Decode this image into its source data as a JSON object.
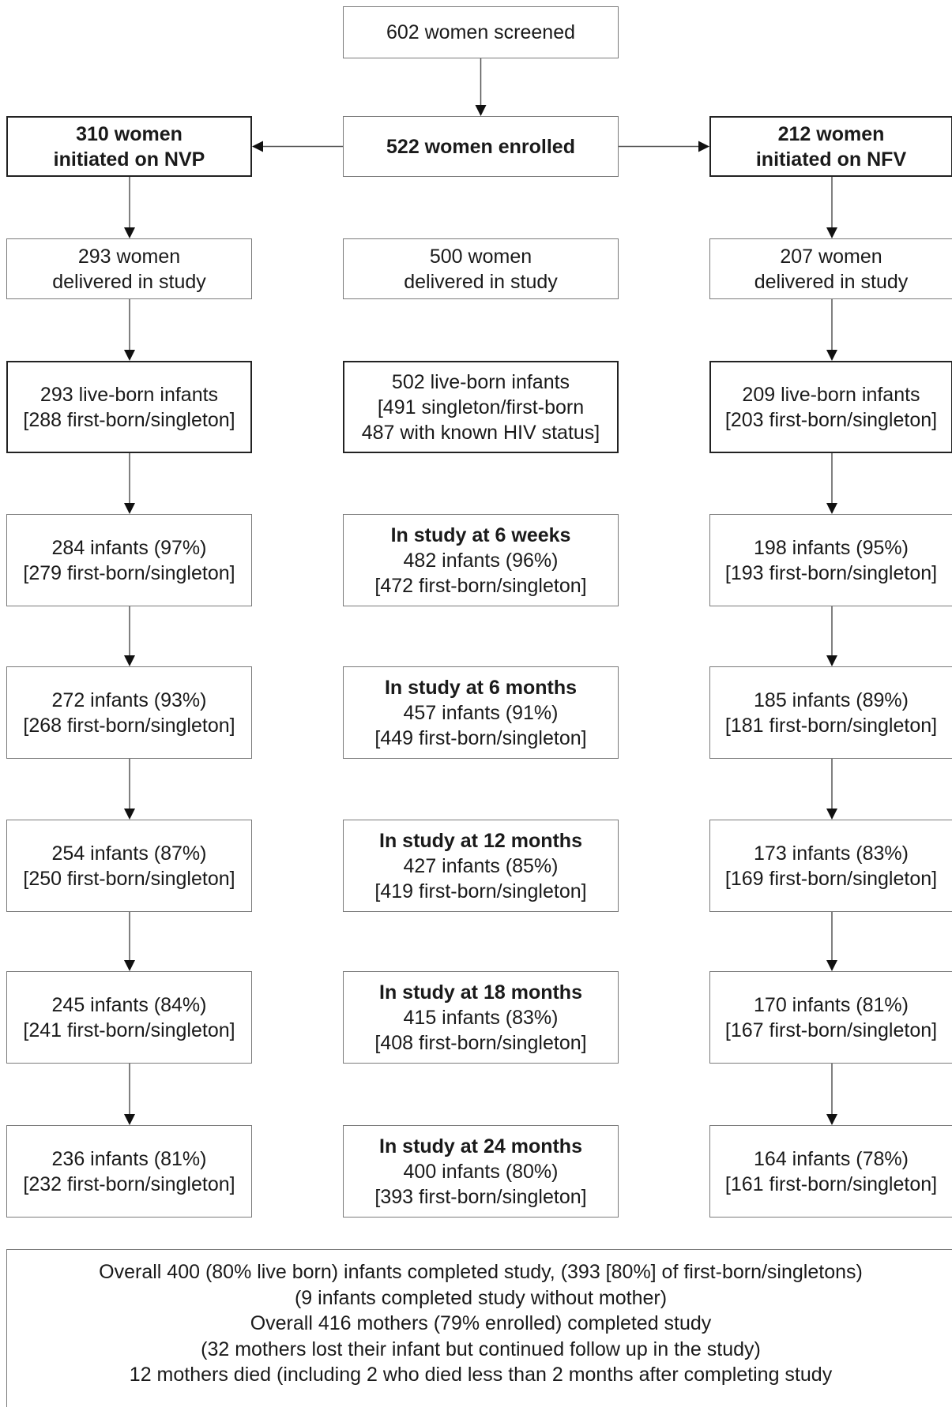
{
  "screened": [
    "602 women screened"
  ],
  "enrolled": [
    "522 women enrolled"
  ],
  "nvp": {
    "initiated": [
      "310 women",
      "initiated on NVP"
    ],
    "delivered": [
      "293 women",
      "delivered in study"
    ],
    "liveborn": [
      "293 live-born infants",
      "[288 first-born/singleton]"
    ],
    "wk6": [
      "284 infants (97%)",
      "[279 first-born/singleton]"
    ],
    "m6": [
      "272  infants (93%)",
      "[268 first-born/singleton]"
    ],
    "m12": [
      "254 infants (87%)",
      "[250 first-born/singleton]"
    ],
    "m18": [
      "245 infants (84%)",
      "[241 first-born/singleton]"
    ],
    "m24": [
      "236 infants (81%)",
      "[232 first-born/singleton]"
    ]
  },
  "total": {
    "delivered": [
      "500 women",
      "delivered in study"
    ],
    "liveborn": [
      "502 live-born infants",
      "[491 singleton/first-born",
      "487 with known HIV status]"
    ],
    "wk6": [
      "In study at 6 weeks",
      "482 infants  (96%)",
      "[472 first-born/singleton]"
    ],
    "m6": [
      "In study at 6 months",
      "457  infants (91%)",
      "[449 first-born/singleton]"
    ],
    "m12": [
      "In study at 12 months",
      "427  infants (85%)",
      "[419 first-born/singleton]"
    ],
    "m18": [
      "In study at 18 months",
      "415 infants  (83%)",
      "[408 first-born/singleton]"
    ],
    "m24": [
      "In study at 24 months",
      "400 infants (80%)",
      "[393 first-born/singleton]"
    ]
  },
  "nfv": {
    "initiated": [
      "212 women",
      "initiated on NFV"
    ],
    "delivered": [
      "207 women",
      "delivered in study"
    ],
    "liveborn": [
      "209 live-born infants",
      "[203 first-born/singleton]"
    ],
    "wk6": [
      "198 infants  (95%)",
      "[193 first-born/singleton]"
    ],
    "m6": [
      "185  infants (89%)",
      "[181 first-born/singleton]"
    ],
    "m12": [
      "173  infants (83%)",
      "[169 first-born/singleton]"
    ],
    "m18": [
      "170 infants  (81%)",
      "[167 first-born/singleton]"
    ],
    "m24": [
      "164 infants (78%)",
      "[161 first-born/singleton]"
    ]
  },
  "summary": [
    "Overall 400 (80% live born) infants completed study, (393 [80%] of first-born/singletons)",
    "(9 infants completed study without mother)",
    "Overall 416 mothers (79% enrolled) completed study",
    "(32 mothers lost their infant but continued follow up in the study)",
    "12 mothers died (including 2 who died less than 2 months after completing study"
  ]
}
